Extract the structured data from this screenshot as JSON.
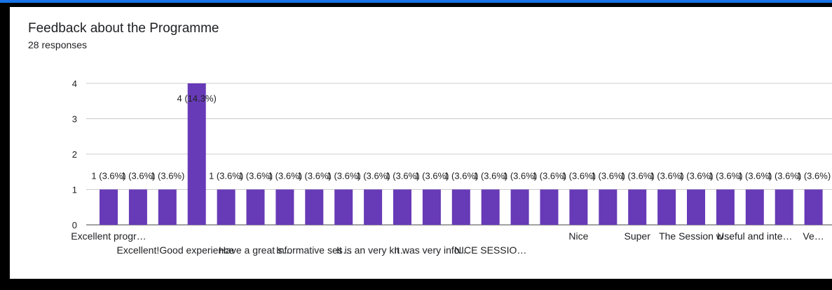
{
  "colors": {
    "bar": "#673ab7",
    "gridline": "#cccccc",
    "axis": "#444444",
    "text": "#202124",
    "background": "#ffffff",
    "frame": "#000000"
  },
  "header": {
    "title": "Feedback about the Programme",
    "responses": "28 responses"
  },
  "chart_data": {
    "type": "bar",
    "title": "Feedback about the Programme",
    "subtitle": "28 responses",
    "xlabel": "",
    "ylabel": "",
    "ylim": [
      0,
      4
    ],
    "yticks": [
      0,
      1,
      2,
      3,
      4
    ],
    "grid": true,
    "legend": "none",
    "categories": [
      "Excellent progr…",
      "Excellent!",
      "",
      "Good experience",
      "",
      "Have a great s…",
      "",
      "Informative ses…",
      "",
      "It is an very kn…",
      "",
      "It was very info…",
      "",
      "NICE SESSIO…",
      "",
      "",
      "Nice",
      "",
      "Super",
      "",
      "The Session w…",
      "",
      "Useful and inte…",
      "",
      "Ve…"
    ],
    "values": [
      1,
      1,
      1,
      4,
      1,
      1,
      1,
      1,
      1,
      1,
      1,
      1,
      1,
      1,
      1,
      1,
      1,
      1,
      1,
      1,
      1,
      1,
      1,
      1,
      1
    ],
    "data_labels": [
      "1 (3.6%)",
      "1 (3.6%)",
      "1 (3.6%)",
      "4 (14.3%)",
      "1 (3.6%)",
      "1 (3.6%)",
      "1 (3.6%)",
      "1 (3.6%)",
      "1 (3.6%)",
      "1 (3.6%)",
      "1 (3.6%)",
      "1 (3.6%)",
      "1 (3.6%)",
      "1 (3.6%)",
      "1 (3.6%)",
      "1 (3.6%)",
      "1 (3.6%)",
      "1 (3.6%)",
      "1 (3.6%)",
      "1 (3.6%)",
      "1 (3.6%)",
      "1 (3.6%)",
      "1 (3.6%)",
      "1 (3.6%)",
      "1 (3.6%)"
    ]
  }
}
